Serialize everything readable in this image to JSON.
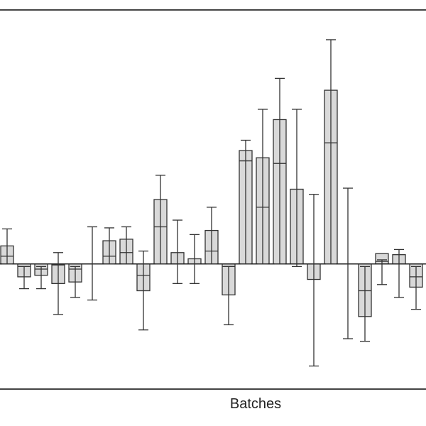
{
  "chart_data": {
    "type": "bar",
    "title": "",
    "xlabel": "Batches",
    "ylabel": "",
    "ylim": [
      -2.4,
      4.9
    ],
    "grid": false,
    "bar_fill": "#d9d9d9",
    "bar_stroke": "#333333",
    "frame_color": "#444444",
    "series": [
      {
        "values": [
          0.35,
          -0.25,
          -0.22,
          -0.38,
          -0.35,
          0.0,
          0.45,
          0.48,
          -0.52,
          1.25,
          0.22,
          0.1,
          0.65,
          -0.6,
          2.2,
          2.06,
          2.8,
          1.45,
          -0.3,
          3.37,
          0.0,
          -1.02,
          0.2,
          0.18,
          -0.45
        ],
        "inner_values": [
          0.15,
          -0.05,
          -0.1,
          -0.02,
          -0.1,
          0.0,
          0.15,
          0.22,
          -0.22,
          0.72,
          0.0,
          0.0,
          0.25,
          -0.05,
          2.0,
          1.1,
          1.95,
          1.45,
          -0.3,
          2.35,
          0.0,
          -0.52,
          0.05,
          0.0,
          -0.25
        ],
        "error_upper": [
          0.68,
          -0.05,
          -0.05,
          0.22,
          -0.05,
          0.72,
          0.7,
          0.72,
          0.25,
          1.72,
          0.85,
          0.57,
          1.1,
          -0.05,
          2.4,
          3.0,
          3.6,
          3.0,
          1.35,
          4.35,
          1.47,
          -0.05,
          0.08,
          0.28,
          -0.05
        ],
        "error_lower": [
          0.0,
          -0.48,
          -0.48,
          -0.98,
          -0.65,
          -0.7,
          0.0,
          0.0,
          -1.28,
          0.0,
          -0.38,
          -0.38,
          0.0,
          -1.18,
          0.0,
          0.0,
          0.0,
          -0.05,
          -1.98,
          0.0,
          -1.45,
          -1.5,
          -0.4,
          -0.65,
          -0.88
        ]
      }
    ]
  }
}
